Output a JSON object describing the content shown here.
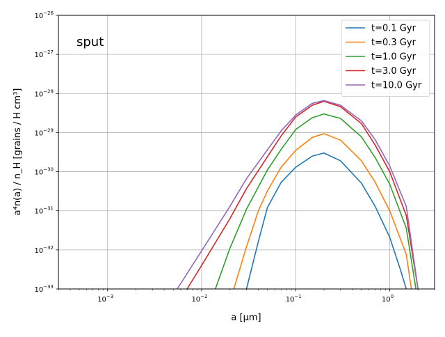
{
  "chart_data": {
    "type": "line",
    "title": "",
    "annotation": "sput",
    "xlabel": "a [μm]",
    "ylabel": "a⁴n(a) / n_H [grains / H cm³]",
    "xscale": "log",
    "yscale": "log",
    "xlim": [
      0.0003,
      3.0
    ],
    "ylim": [
      1e-33,
      1e-26
    ],
    "grid": true,
    "legend_position": "top-right",
    "x_ticks": [
      {
        "value": 0.001,
        "base": "10",
        "exp": "−3"
      },
      {
        "value": 0.01,
        "base": "10",
        "exp": "−2"
      },
      {
        "value": 0.1,
        "base": "10",
        "exp": "−1"
      },
      {
        "value": 1.0,
        "base": "10",
        "exp": "0"
      }
    ],
    "y_ticks": [
      {
        "value": 1e-33,
        "base": "10",
        "exp": "−33"
      },
      {
        "value": 1e-32,
        "base": "10",
        "exp": "−32"
      },
      {
        "value": 1e-31,
        "base": "10",
        "exp": "−31"
      },
      {
        "value": 1e-30,
        "base": "10",
        "exp": "−30"
      },
      {
        "value": 1e-29,
        "base": "10",
        "exp": "−29"
      },
      {
        "value": 1e-28,
        "base": "10",
        "exp": "−28"
      },
      {
        "value": 1e-27,
        "base": "10",
        "exp": "−27"
      },
      {
        "value": 1e-26,
        "base": "10",
        "exp": "−26"
      }
    ],
    "series": [
      {
        "name": "t=0.1 Gyr",
        "color": "#1f77b4",
        "points": [
          [
            0.03,
            1e-33
          ],
          [
            0.04,
            1.6e-32
          ],
          [
            0.05,
            1.2e-31
          ],
          [
            0.07,
            5.3e-31
          ],
          [
            0.1,
            1.3e-30
          ],
          [
            0.15,
            2.5e-30
          ],
          [
            0.2,
            3e-30
          ],
          [
            0.3,
            1.9e-30
          ],
          [
            0.5,
            5.1e-31
          ],
          [
            0.7,
            1.3e-31
          ],
          [
            1.0,
            2.1e-32
          ],
          [
            1.3,
            3.1e-33
          ],
          [
            1.5,
            1e-33
          ]
        ]
      },
      {
        "name": "t=0.3 Gyr",
        "color": "#ff7f0e",
        "points": [
          [
            0.022,
            1e-33
          ],
          [
            0.03,
            1.2e-32
          ],
          [
            0.04,
            9.8e-32
          ],
          [
            0.05,
            3.2e-31
          ],
          [
            0.07,
            1.3e-30
          ],
          [
            0.1,
            3.5e-30
          ],
          [
            0.15,
            7.5e-30
          ],
          [
            0.2,
            9.4e-30
          ],
          [
            0.3,
            6.4e-30
          ],
          [
            0.5,
            1.9e-30
          ],
          [
            0.7,
            5.4e-31
          ],
          [
            1.0,
            1e-31
          ],
          [
            1.5,
            7.7e-33
          ],
          [
            1.7,
            1e-33
          ]
        ]
      },
      {
        "name": "t=1.0 Gyr",
        "color": "#2ca02c",
        "points": [
          [
            0.014,
            1e-33
          ],
          [
            0.02,
            1.1e-32
          ],
          [
            0.03,
            1.1e-31
          ],
          [
            0.05,
            1.1e-30
          ],
          [
            0.07,
            3.7e-30
          ],
          [
            0.1,
            1.2e-29
          ],
          [
            0.15,
            2.4e-29
          ],
          [
            0.2,
            3e-29
          ],
          [
            0.3,
            2.3e-29
          ],
          [
            0.5,
            7.8e-30
          ],
          [
            0.7,
            2.3e-30
          ],
          [
            1.0,
            4.8e-31
          ],
          [
            1.5,
            3.6e-32
          ],
          [
            1.9,
            1e-33
          ]
        ]
      },
      {
        "name": "t=3.0 Gyr",
        "color": "#d62728",
        "points": [
          [
            0.007,
            1e-33
          ],
          [
            0.01,
            4e-33
          ],
          [
            0.02,
            6.3e-32
          ],
          [
            0.03,
            3.7e-31
          ],
          [
            0.05,
            2.4e-30
          ],
          [
            0.07,
            8.2e-30
          ],
          [
            0.1,
            2.5e-29
          ],
          [
            0.15,
            5e-29
          ],
          [
            0.2,
            6.3e-29
          ],
          [
            0.3,
            4.6e-29
          ],
          [
            0.5,
            1.7e-29
          ],
          [
            0.7,
            4.8e-30
          ],
          [
            1.0,
            1e-30
          ],
          [
            1.5,
            7.6e-32
          ],
          [
            2.0,
            1e-33
          ]
        ]
      },
      {
        "name": "t=10.0 Gyr",
        "color": "#9467bd",
        "points": [
          [
            0.0055,
            1e-33
          ],
          [
            0.01,
            9.4e-33
          ],
          [
            0.02,
            1.3e-31
          ],
          [
            0.03,
            6.6e-31
          ],
          [
            0.05,
            3.6e-30
          ],
          [
            0.07,
            1.1e-29
          ],
          [
            0.1,
            2.8e-29
          ],
          [
            0.15,
            5.6e-29
          ],
          [
            0.2,
            6.6e-29
          ],
          [
            0.3,
            5e-29
          ],
          [
            0.5,
            2e-29
          ],
          [
            0.7,
            6.6e-30
          ],
          [
            1.0,
            1.4e-30
          ],
          [
            1.5,
            1.3e-31
          ],
          [
            2.0,
            1e-33
          ]
        ]
      }
    ]
  }
}
